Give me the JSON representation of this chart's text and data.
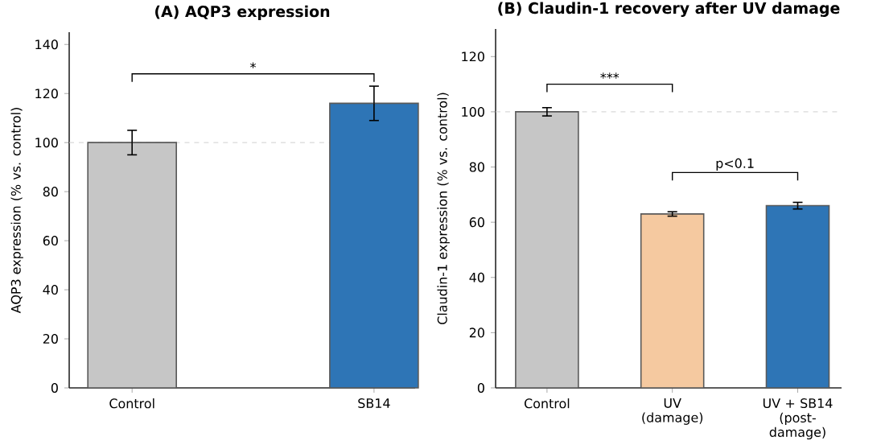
{
  "chart_data": [
    {
      "type": "bar",
      "title": "(A) AQP3 expression",
      "ylabel": "AQP3 expression (% vs. control)",
      "categories": [
        "Control",
        "SB14"
      ],
      "values": [
        100,
        116
      ],
      "errors": [
        5,
        7
      ],
      "colors": [
        "#c6c6c6",
        "#2e75b6"
      ],
      "ylim": [
        0,
        145
      ],
      "yticks": [
        0,
        20,
        40,
        60,
        80,
        100,
        120,
        140
      ],
      "ref_lines": [
        {
          "axis": "y",
          "value": 100,
          "color": "#d0d0d0",
          "line_style": "dashed"
        }
      ],
      "annotations": [
        "*"
      ]
    },
    {
      "type": "bar",
      "title": "(B) Claudin-1 recovery after UV damage",
      "ylabel": "Claudin-1 expression (% vs. control)",
      "categories": [
        "Control",
        "UV (damage)",
        "UV + SB14 (post-damage)"
      ],
      "values": [
        100,
        63,
        66
      ],
      "errors": [
        1.5,
        0.8,
        1.2
      ],
      "colors": [
        "#c6c6c6",
        "#f5c9a0",
        "#2e75b6"
      ],
      "ylim": [
        0,
        130
      ],
      "yticks": [
        0,
        20,
        40,
        60,
        80,
        100,
        120
      ],
      "ref_lines": [
        {
          "axis": "y",
          "value": 100,
          "color": "#d0d0d0",
          "line_style": "dashed"
        }
      ],
      "annotations": [
        "***",
        "p<0.1"
      ]
    }
  ]
}
